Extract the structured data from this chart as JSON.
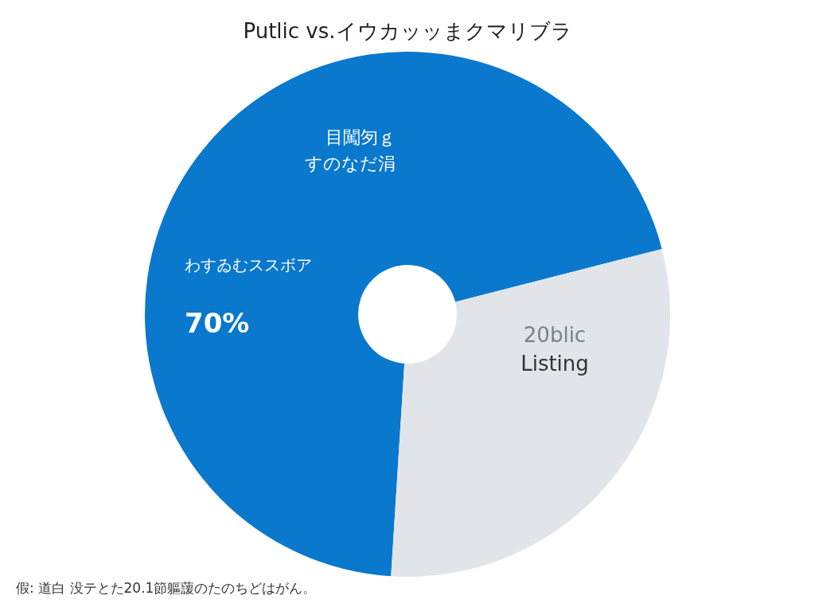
{
  "chart_data": {
    "type": "donut",
    "title": "Putlic vs.イウカッッまクマリブラ",
    "categories": [
      "わすゐむススボア",
      "20blic Listing"
    ],
    "values": [
      70,
      30
    ],
    "colors": [
      "#0a78cc",
      "#e1e5ea"
    ],
    "value_labels": [
      "70%",
      null
    ],
    "annotations": [
      "目闖匇ｇ",
      "すのなだ涓",
      "假: 道白 没テとた20.1節軀蘐のたのちどはがん。"
    ]
  }
}
